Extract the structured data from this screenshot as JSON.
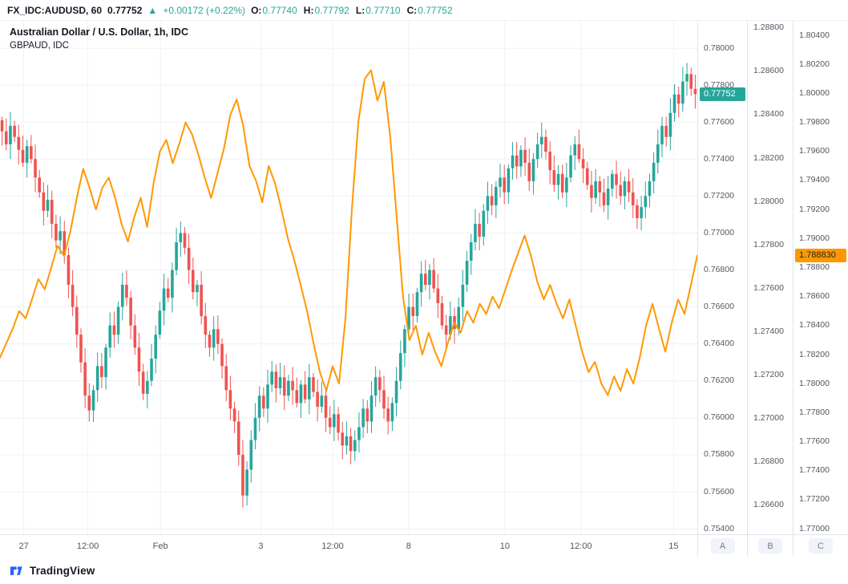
{
  "topbar": {
    "symbol": "FX_IDC:AUDUSD, 60",
    "last_price": "0.77752",
    "change_arrow": "▲",
    "change": "+0.00172 (+0.22%)",
    "ohlc": [
      {
        "label": "O:",
        "value": "0.77740"
      },
      {
        "label": "H:",
        "value": "0.77792"
      },
      {
        "label": "L:",
        "value": "0.77710"
      },
      {
        "label": "C:",
        "value": "0.77752"
      }
    ]
  },
  "legend": {
    "line1": "Australian Dollar / U.S. Dollar, 1h, IDC",
    "line2": "GBPAUD, IDC"
  },
  "axis_buttons": [
    "A",
    "B",
    "C"
  ],
  "footer": {
    "brand": "TradingView"
  },
  "theme": {
    "up": "#26a69a",
    "down": "#ef5350",
    "line": "#ff9800",
    "grid": "#eef1f6",
    "axis_text": "#52565f",
    "accent_blue": "#2962ff"
  },
  "chart_data": {
    "type": "mixed",
    "title": "Australian Dollar / U.S. Dollar, 1h, IDC vs GBPAUD, IDC",
    "grid": true,
    "legend_position": "top-left",
    "time_ticks": [
      {
        "label": "27",
        "t": 0.034
      },
      {
        "label": "12:00",
        "t": 0.126
      },
      {
        "label": "Feb",
        "t": 0.23
      },
      {
        "label": "3",
        "t": 0.374
      },
      {
        "label": "12:00",
        "t": 0.477
      },
      {
        "label": "8",
        "t": 0.586
      },
      {
        "label": "10",
        "t": 0.724
      },
      {
        "label": "12:00",
        "t": 0.833
      },
      {
        "label": "15",
        "t": 0.966
      }
    ],
    "axes": {
      "A": {
        "position": "right",
        "ylim": [
          0.7537,
          0.78148
        ],
        "ticks": [
          "0.78000",
          "0.77800",
          "0.77600",
          "0.77400",
          "0.77200",
          "0.77000",
          "0.76800",
          "0.76600",
          "0.76400",
          "0.76200",
          "0.76000",
          "0.75800",
          "0.75600",
          "0.75400"
        ],
        "last_label": "0.77752",
        "last_value": 0.77752,
        "last_bg": "#26a69a",
        "last_fg": "#ffffff"
      },
      "B": {
        "position": "right",
        "ylim": [
          1.26464,
          1.28833
        ],
        "ticks": [
          "1.28800",
          "1.28600",
          "1.28400",
          "1.28200",
          "1.28000",
          "1.27800",
          "1.27600",
          "1.27400",
          "1.27200",
          "1.27000",
          "1.26800",
          "1.26600"
        ]
      },
      "C": {
        "position": "right",
        "ylim": [
          1.76962,
          1.805
        ],
        "ticks": [
          "1.80400",
          "1.80200",
          "1.80000",
          "1.79800",
          "1.79600",
          "1.79400",
          "1.79200",
          "1.79000",
          "1.78800",
          "1.78600",
          "1.78400",
          "1.78200",
          "1.78000",
          "1.77800",
          "1.77600",
          "1.77400",
          "1.77200",
          "1.77000"
        ],
        "last_label": "1.788830",
        "last_value": 1.78883,
        "last_bg": "#ff9800",
        "last_fg": "#1d2330"
      }
    },
    "series": [
      {
        "name": "AUDUSD 1h candles",
        "type": "candlestick",
        "axis": "A",
        "up_color": "#26a69a",
        "down_color": "#ef5350",
        "last": 0.77752,
        "ylim": [
          0.7537,
          0.78148
        ],
        "closes": [
          0.7755,
          0.7748,
          0.7758,
          0.7752,
          0.7745,
          0.7738,
          0.7747,
          0.774,
          0.773,
          0.7722,
          0.7712,
          0.7718,
          0.7705,
          0.7696,
          0.7701,
          0.7688,
          0.7672,
          0.766,
          0.7645,
          0.763,
          0.7612,
          0.7604,
          0.7615,
          0.7628,
          0.7622,
          0.7638,
          0.765,
          0.7645,
          0.766,
          0.7672,
          0.7665,
          0.765,
          0.7638,
          0.7625,
          0.7613,
          0.762,
          0.7632,
          0.7645,
          0.7658,
          0.767,
          0.7665,
          0.768,
          0.7695,
          0.77,
          0.7692,
          0.768,
          0.7668,
          0.7672,
          0.7655,
          0.7645,
          0.7638,
          0.7648,
          0.764,
          0.7628,
          0.7615,
          0.7605,
          0.7598,
          0.758,
          0.7558,
          0.7572,
          0.7588,
          0.76,
          0.7612,
          0.7605,
          0.7618,
          0.7625,
          0.7616,
          0.7622,
          0.7612,
          0.762,
          0.7615,
          0.7608,
          0.7618,
          0.761,
          0.7622,
          0.7614,
          0.7606,
          0.7612,
          0.76,
          0.7595,
          0.7602,
          0.7592,
          0.7585,
          0.759,
          0.7582,
          0.7588,
          0.7595,
          0.7605,
          0.7598,
          0.7612,
          0.7622,
          0.7615,
          0.7605,
          0.7598,
          0.7608,
          0.762,
          0.7635,
          0.7648,
          0.766,
          0.7655,
          0.7668,
          0.7678,
          0.7672,
          0.768,
          0.767,
          0.7662,
          0.765,
          0.7645,
          0.7655,
          0.7648,
          0.766,
          0.7672,
          0.7685,
          0.7695,
          0.7705,
          0.7698,
          0.7712,
          0.772,
          0.7715,
          0.7725,
          0.773,
          0.7722,
          0.7735,
          0.7742,
          0.7736,
          0.7745,
          0.7738,
          0.7728,
          0.774,
          0.7748,
          0.7752,
          0.7744,
          0.7734,
          0.7726,
          0.7732,
          0.7722,
          0.773,
          0.7742,
          0.7748,
          0.774,
          0.7735,
          0.7726,
          0.7719,
          0.7728,
          0.7722,
          0.7715,
          0.7724,
          0.7732,
          0.7726,
          0.772,
          0.7728,
          0.7722,
          0.7715,
          0.7708,
          0.7714,
          0.772,
          0.7728,
          0.7738,
          0.7748,
          0.7758,
          0.7752,
          0.7765,
          0.7775,
          0.777,
          0.7782,
          0.7786,
          0.7778,
          0.77752
        ]
      },
      {
        "name": "GBPAUD line",
        "type": "line",
        "axis": "C",
        "color": "#ff9800",
        "last": 1.78883,
        "ylim": [
          1.76962,
          1.805
        ],
        "values": [
          1.7818,
          1.7828,
          1.7838,
          1.785,
          1.7845,
          1.7858,
          1.7872,
          1.7865,
          1.788,
          1.7895,
          1.7888,
          1.7905,
          1.7928,
          1.7948,
          1.7935,
          1.792,
          1.7935,
          1.7942,
          1.7928,
          1.791,
          1.7898,
          1.7915,
          1.7928,
          1.7908,
          1.7938,
          1.796,
          1.7968,
          1.7952,
          1.7965,
          1.798,
          1.7972,
          1.7958,
          1.7942,
          1.7928,
          1.7945,
          1.7962,
          1.7985,
          1.7996,
          1.7978,
          1.795,
          1.794,
          1.7925,
          1.795,
          1.7938,
          1.792,
          1.79,
          1.7885,
          1.7868,
          1.785,
          1.7828,
          1.7808,
          1.7795,
          1.7812,
          1.78,
          1.7845,
          1.792,
          1.798,
          1.801,
          1.8016,
          1.7995,
          1.8008,
          1.797,
          1.7915,
          1.786,
          1.783,
          1.784,
          1.782,
          1.7835,
          1.7822,
          1.7812,
          1.7828,
          1.7842,
          1.7835,
          1.785,
          1.7842,
          1.7855,
          1.7848,
          1.786,
          1.7852,
          1.7865,
          1.7878,
          1.789,
          1.7902,
          1.7888,
          1.787,
          1.7858,
          1.7868,
          1.7855,
          1.7845,
          1.7858,
          1.784,
          1.7822,
          1.7808,
          1.7815,
          1.78,
          1.7792,
          1.7805,
          1.7795,
          1.781,
          1.78,
          1.7818,
          1.784,
          1.7855,
          1.7838,
          1.7822,
          1.7842,
          1.7858,
          1.7848,
          1.7868,
          1.78883
        ]
      }
    ]
  }
}
